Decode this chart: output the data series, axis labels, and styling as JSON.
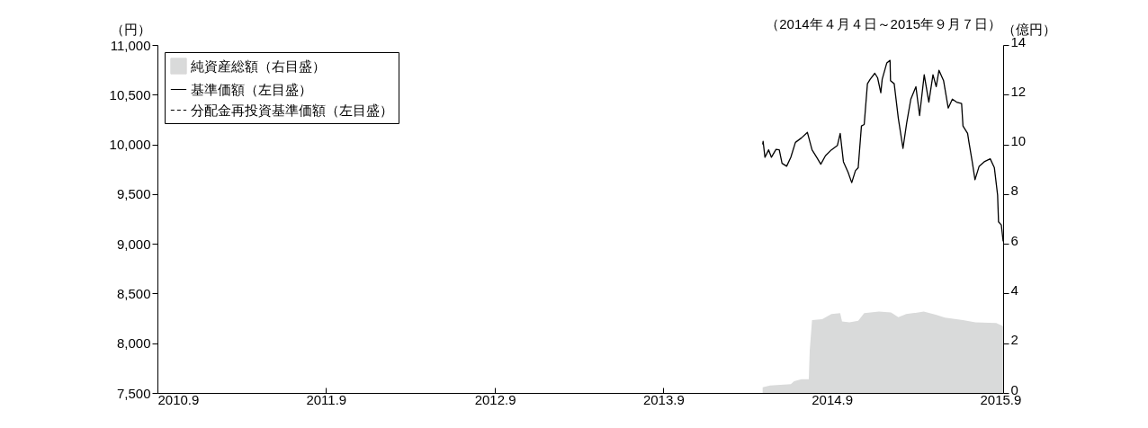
{
  "chart_data": {
    "type": "line",
    "title": "（2014年４月４日～2015年９月７日）",
    "ylabel": "（円）",
    "y2label": "（億円）",
    "xlim": [
      "2010-09-01",
      "2015-09-07"
    ],
    "xticks": [
      {
        "value": "2010-09-01",
        "label": "2010.9"
      },
      {
        "value": "2011-09-01",
        "label": "2011.9"
      },
      {
        "value": "2012-09-01",
        "label": "2012.9"
      },
      {
        "value": "2013-09-01",
        "label": "2013.9"
      },
      {
        "value": "2014-09-01",
        "label": "2014.9"
      },
      {
        "value": "2015-09-01",
        "label": "2015.9"
      }
    ],
    "ylim": [
      7500,
      11000
    ],
    "yticks": [
      {
        "value": 7500,
        "label": "7,500"
      },
      {
        "value": 8000,
        "label": "8,000"
      },
      {
        "value": 8500,
        "label": "8,500"
      },
      {
        "value": 9000,
        "label": "9,000"
      },
      {
        "value": 9500,
        "label": "9,500"
      },
      {
        "value": 10000,
        "label": "10,000"
      },
      {
        "value": 10500,
        "label": "10,500"
      },
      {
        "value": 11000,
        "label": "11,000"
      }
    ],
    "y2lim": [
      0,
      14
    ],
    "y2ticks": [
      0,
      2,
      4,
      6,
      8,
      10,
      12,
      14
    ],
    "legend": "top left",
    "grid": false,
    "series": [
      {
        "name": "純資産総額（右目盛）",
        "type": "area",
        "axis": "y2",
        "color": "#d9dada",
        "x": [
          "2014-04-04",
          "2014-04-20",
          "2014-06-04",
          "2014-06-11",
          "2014-06-27",
          "2014-07-13",
          "2014-07-15",
          "2014-07-20",
          "2014-08-11",
          "2014-08-31",
          "2014-09-19",
          "2014-09-23",
          "2014-10-09",
          "2014-10-28",
          "2014-11-10",
          "2014-12-12",
          "2015-01-07",
          "2015-01-23",
          "2015-02-09",
          "2015-03-19",
          "2015-04-14",
          "2015-05-04",
          "2015-06-12",
          "2015-07-09",
          "2015-08-23",
          "2015-09-07"
        ],
        "values": [
          0.23,
          0.3,
          0.35,
          0.47,
          0.55,
          0.55,
          1.7,
          2.93,
          2.97,
          3.17,
          3.21,
          2.88,
          2.84,
          2.9,
          3.21,
          3.27,
          3.24,
          3.05,
          3.17,
          3.27,
          3.15,
          3.03,
          2.93,
          2.84,
          2.81,
          2.69
        ]
      },
      {
        "name": "基準価額（左目盛）",
        "axis": "y",
        "color": "#000000",
        "line_style": "solid",
        "x": [
          "2014-04-04",
          "2014-04-05",
          "2014-04-09",
          "2014-04-17",
          "2014-04-23",
          "2014-05-03",
          "2014-05-10",
          "2014-05-16",
          "2014-05-26",
          "2014-06-04",
          "2014-06-14",
          "2014-06-27",
          "2014-07-10",
          "2014-07-20",
          "2014-07-30",
          "2014-08-08",
          "2014-08-18",
          "2014-08-31",
          "2014-09-13",
          "2014-09-19",
          "2014-09-26",
          "2014-10-06",
          "2014-10-14",
          "2014-10-22",
          "2014-10-28",
          "2014-11-04",
          "2014-11-10",
          "2014-11-17",
          "2014-11-23",
          "2014-12-03",
          "2014-12-09",
          "2014-12-16",
          "2014-12-19",
          "2014-12-29",
          "2015-01-05",
          "2015-01-06",
          "2015-01-14",
          "2015-01-23",
          "2015-02-02",
          "2015-02-10",
          "2015-02-19",
          "2015-03-02",
          "2015-03-10",
          "2015-03-20",
          "2015-03-30",
          "2015-04-08",
          "2015-04-15",
          "2015-04-21",
          "2015-05-01",
          "2015-05-11",
          "2015-05-20",
          "2015-05-29",
          "2015-06-09",
          "2015-06-12",
          "2015-06-22",
          "2015-06-25",
          "2015-07-02",
          "2015-07-08",
          "2015-07-17",
          "2015-07-28",
          "2015-08-10",
          "2015-08-19",
          "2015-08-26",
          "2015-08-28",
          "2015-09-03",
          "2015-09-07"
        ],
        "values": [
          10000,
          10030,
          9870,
          9945,
          9870,
          9950,
          9945,
          9810,
          9780,
          9870,
          10020,
          10065,
          10120,
          9945,
          9870,
          9800,
          9885,
          9945,
          9990,
          10110,
          9825,
          9720,
          9615,
          9735,
          9765,
          10185,
          10200,
          10610,
          10655,
          10715,
          10670,
          10520,
          10655,
          10820,
          10845,
          10640,
          10610,
          10260,
          9960,
          10215,
          10455,
          10580,
          10290,
          10700,
          10425,
          10700,
          10580,
          10745,
          10640,
          10365,
          10455,
          10425,
          10410,
          10185,
          10110,
          10020,
          9825,
          9645,
          9780,
          9825,
          9855,
          9765,
          9490,
          9220,
          9190,
          9025
        ]
      },
      {
        "name": "分配金再投資基準価額（左目盛）",
        "axis": "y",
        "color": "#000000",
        "line_style": "dashed"
      }
    ]
  }
}
